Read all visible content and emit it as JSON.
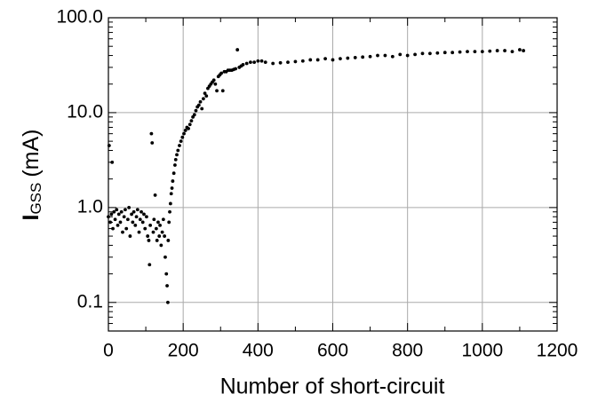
{
  "chart_data": {
    "type": "scatter",
    "x_label": "Number of short-circuit",
    "y_label": "I",
    "y_label_sub": "GSS",
    "y_label_unit": "(mA)",
    "color": "#000000",
    "grid": true,
    "ylog": true,
    "xlim": [
      0,
      1200
    ],
    "xticks": [
      0,
      200,
      400,
      600,
      800,
      1000,
      1200
    ],
    "ylim": [
      0.05,
      100
    ],
    "yticks": [
      0.1,
      {
        "value": 1,
        "label": "1.0"
      },
      {
        "value": 10,
        "label": "10.0"
      },
      {
        "value": 100,
        "label": "100.0"
      }
    ],
    "x": [
      0,
      2,
      5,
      8,
      10,
      12,
      15,
      18,
      22,
      25,
      28,
      32,
      35,
      38,
      42,
      45,
      48,
      52,
      55,
      58,
      62,
      65,
      68,
      72,
      75,
      78,
      82,
      85,
      88,
      92,
      95,
      98,
      102,
      105,
      108,
      110,
      112,
      115,
      117,
      120,
      122,
      125,
      128,
      130,
      133,
      136,
      138,
      141,
      144,
      147,
      150,
      152,
      155,
      157,
      159,
      160,
      162,
      164,
      166,
      168,
      170,
      172,
      175,
      178,
      180,
      183,
      186,
      190,
      194,
      198,
      202,
      206,
      210,
      214,
      218,
      222,
      226,
      230,
      234,
      238,
      242,
      246,
      250,
      254,
      258,
      262,
      266,
      270,
      274,
      278,
      282,
      286,
      290,
      294,
      298,
      302,
      306,
      310,
      315,
      320,
      325,
      330,
      335,
      340,
      345,
      350,
      355,
      360,
      370,
      380,
      390,
      400,
      410,
      420,
      440,
      460,
      480,
      500,
      520,
      540,
      560,
      580,
      600,
      620,
      640,
      660,
      680,
      700,
      720,
      740,
      760,
      780,
      800,
      820,
      840,
      860,
      880,
      900,
      920,
      940,
      960,
      980,
      1000,
      1020,
      1040,
      1060,
      1080,
      1100,
      1110
    ],
    "values": [
      0.8,
      4.5,
      0.7,
      0.85,
      3.0,
      0.6,
      0.9,
      0.75,
      0.95,
      0.65,
      0.85,
      0.7,
      0.9,
      0.55,
      0.8,
      0.95,
      0.6,
      0.75,
      1.0,
      0.5,
      0.85,
      0.7,
      0.9,
      0.65,
      0.8,
      0.95,
      0.55,
      0.75,
      0.9,
      0.7,
      0.85,
      0.6,
      0.8,
      0.5,
      0.45,
      0.25,
      0.65,
      6.0,
      4.8,
      0.55,
      0.75,
      1.35,
      0.6,
      0.45,
      0.7,
      0.5,
      0.65,
      0.4,
      0.55,
      0.75,
      0.5,
      0.3,
      0.2,
      0.15,
      0.1,
      0.45,
      0.7,
      0.9,
      1.1,
      1.4,
      1.6,
      1.9,
      2.3,
      2.8,
      3.2,
      3.6,
      4.0,
      4.5,
      5.0,
      5.5,
      6.0,
      6.5,
      7.0,
      6.8,
      7.5,
      8.2,
      9.0,
      9.5,
      10.5,
      11.5,
      12,
      13,
      11,
      14,
      16,
      15,
      18,
      19,
      20,
      21,
      22,
      20,
      17,
      24,
      25,
      26,
      17,
      27,
      27,
      28,
      28,
      28,
      28.5,
      29,
      46,
      30,
      31,
      32,
      33,
      34,
      34,
      35,
      35,
      34,
      33,
      33.5,
      34,
      34.5,
      35,
      36,
      36,
      37,
      36,
      37,
      37.5,
      38,
      38.5,
      39,
      40,
      40,
      39,
      41,
      40,
      41,
      42,
      42,
      42.5,
      43,
      43,
      43.5,
      44,
      44,
      44,
      44.5,
      45,
      45,
      44,
      46,
      45
    ]
  }
}
